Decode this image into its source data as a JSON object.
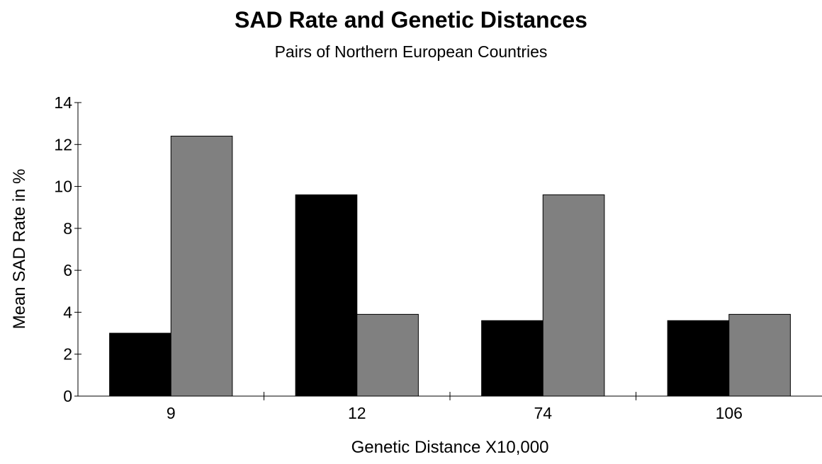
{
  "chart_data": {
    "type": "bar",
    "title": "SAD Rate and Genetic Distances",
    "subtitle": "Pairs of Northern European Countries",
    "xlabel": "Genetic Distance X10,000",
    "ylabel": "Mean SAD Rate in %",
    "categories": [
      "9",
      "12",
      "74",
      "106"
    ],
    "series": [
      {
        "values": [
          3.0,
          9.6,
          3.6,
          3.6
        ],
        "color": "#000000"
      },
      {
        "values": [
          12.4,
          3.9,
          9.6,
          3.9
        ],
        "color": "#808080"
      }
    ],
    "ylim": [
      0,
      14
    ],
    "yticks": [
      0,
      2,
      4,
      6,
      8,
      10,
      12,
      14
    ],
    "grid": false,
    "legend": "none"
  }
}
